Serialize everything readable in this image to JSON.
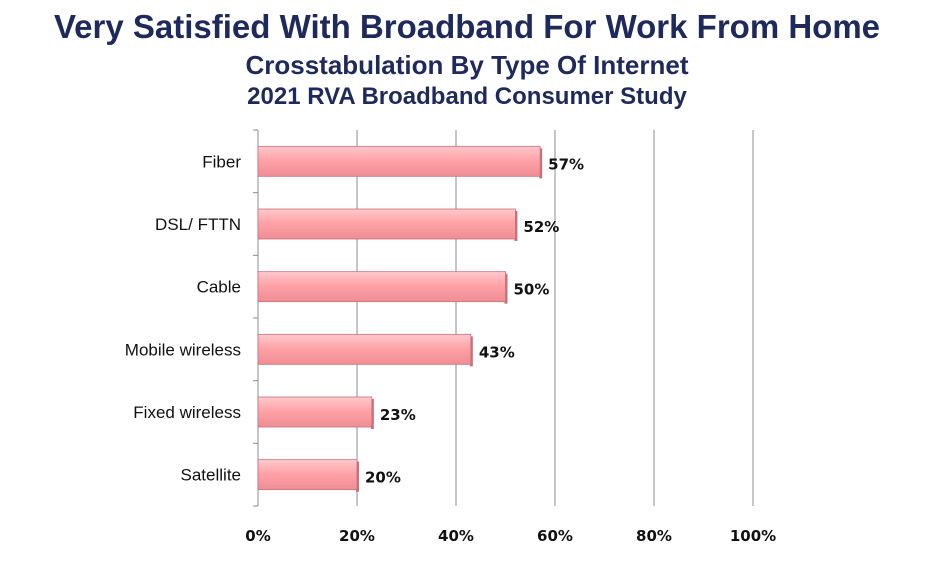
{
  "title": "Very Satisfied With Broadband For Work From Home",
  "subtitle": "Crosstabulation By Type Of Internet",
  "source_line": "2021 RVA Broadband Consumer Study",
  "colors": {
    "title": "#1f2a5c",
    "bar": "#ffa3a8",
    "bar_edge": "#c9707a",
    "grid": "#8c8c8c"
  },
  "chart_data": {
    "type": "bar",
    "orientation": "horizontal",
    "title": "Very Satisfied With Broadband For Work From Home",
    "subtitle": "Crosstabulation By Type Of Internet",
    "categories": [
      "Fiber",
      "DSL/ FTTN",
      "Cable",
      "Mobile wireless",
      "Fixed wireless",
      "Satellite"
    ],
    "values": [
      57,
      52,
      50,
      43,
      23,
      20
    ],
    "value_labels": [
      "57%",
      "52%",
      "50%",
      "43%",
      "23%",
      "20%"
    ],
    "xlim": [
      0,
      100
    ],
    "x_ticks": [
      0,
      20,
      40,
      60,
      80,
      100
    ],
    "x_tick_labels": [
      "0%",
      "20%",
      "40%",
      "60%",
      "80%",
      "100%"
    ],
    "grid": true,
    "legend": "none"
  }
}
